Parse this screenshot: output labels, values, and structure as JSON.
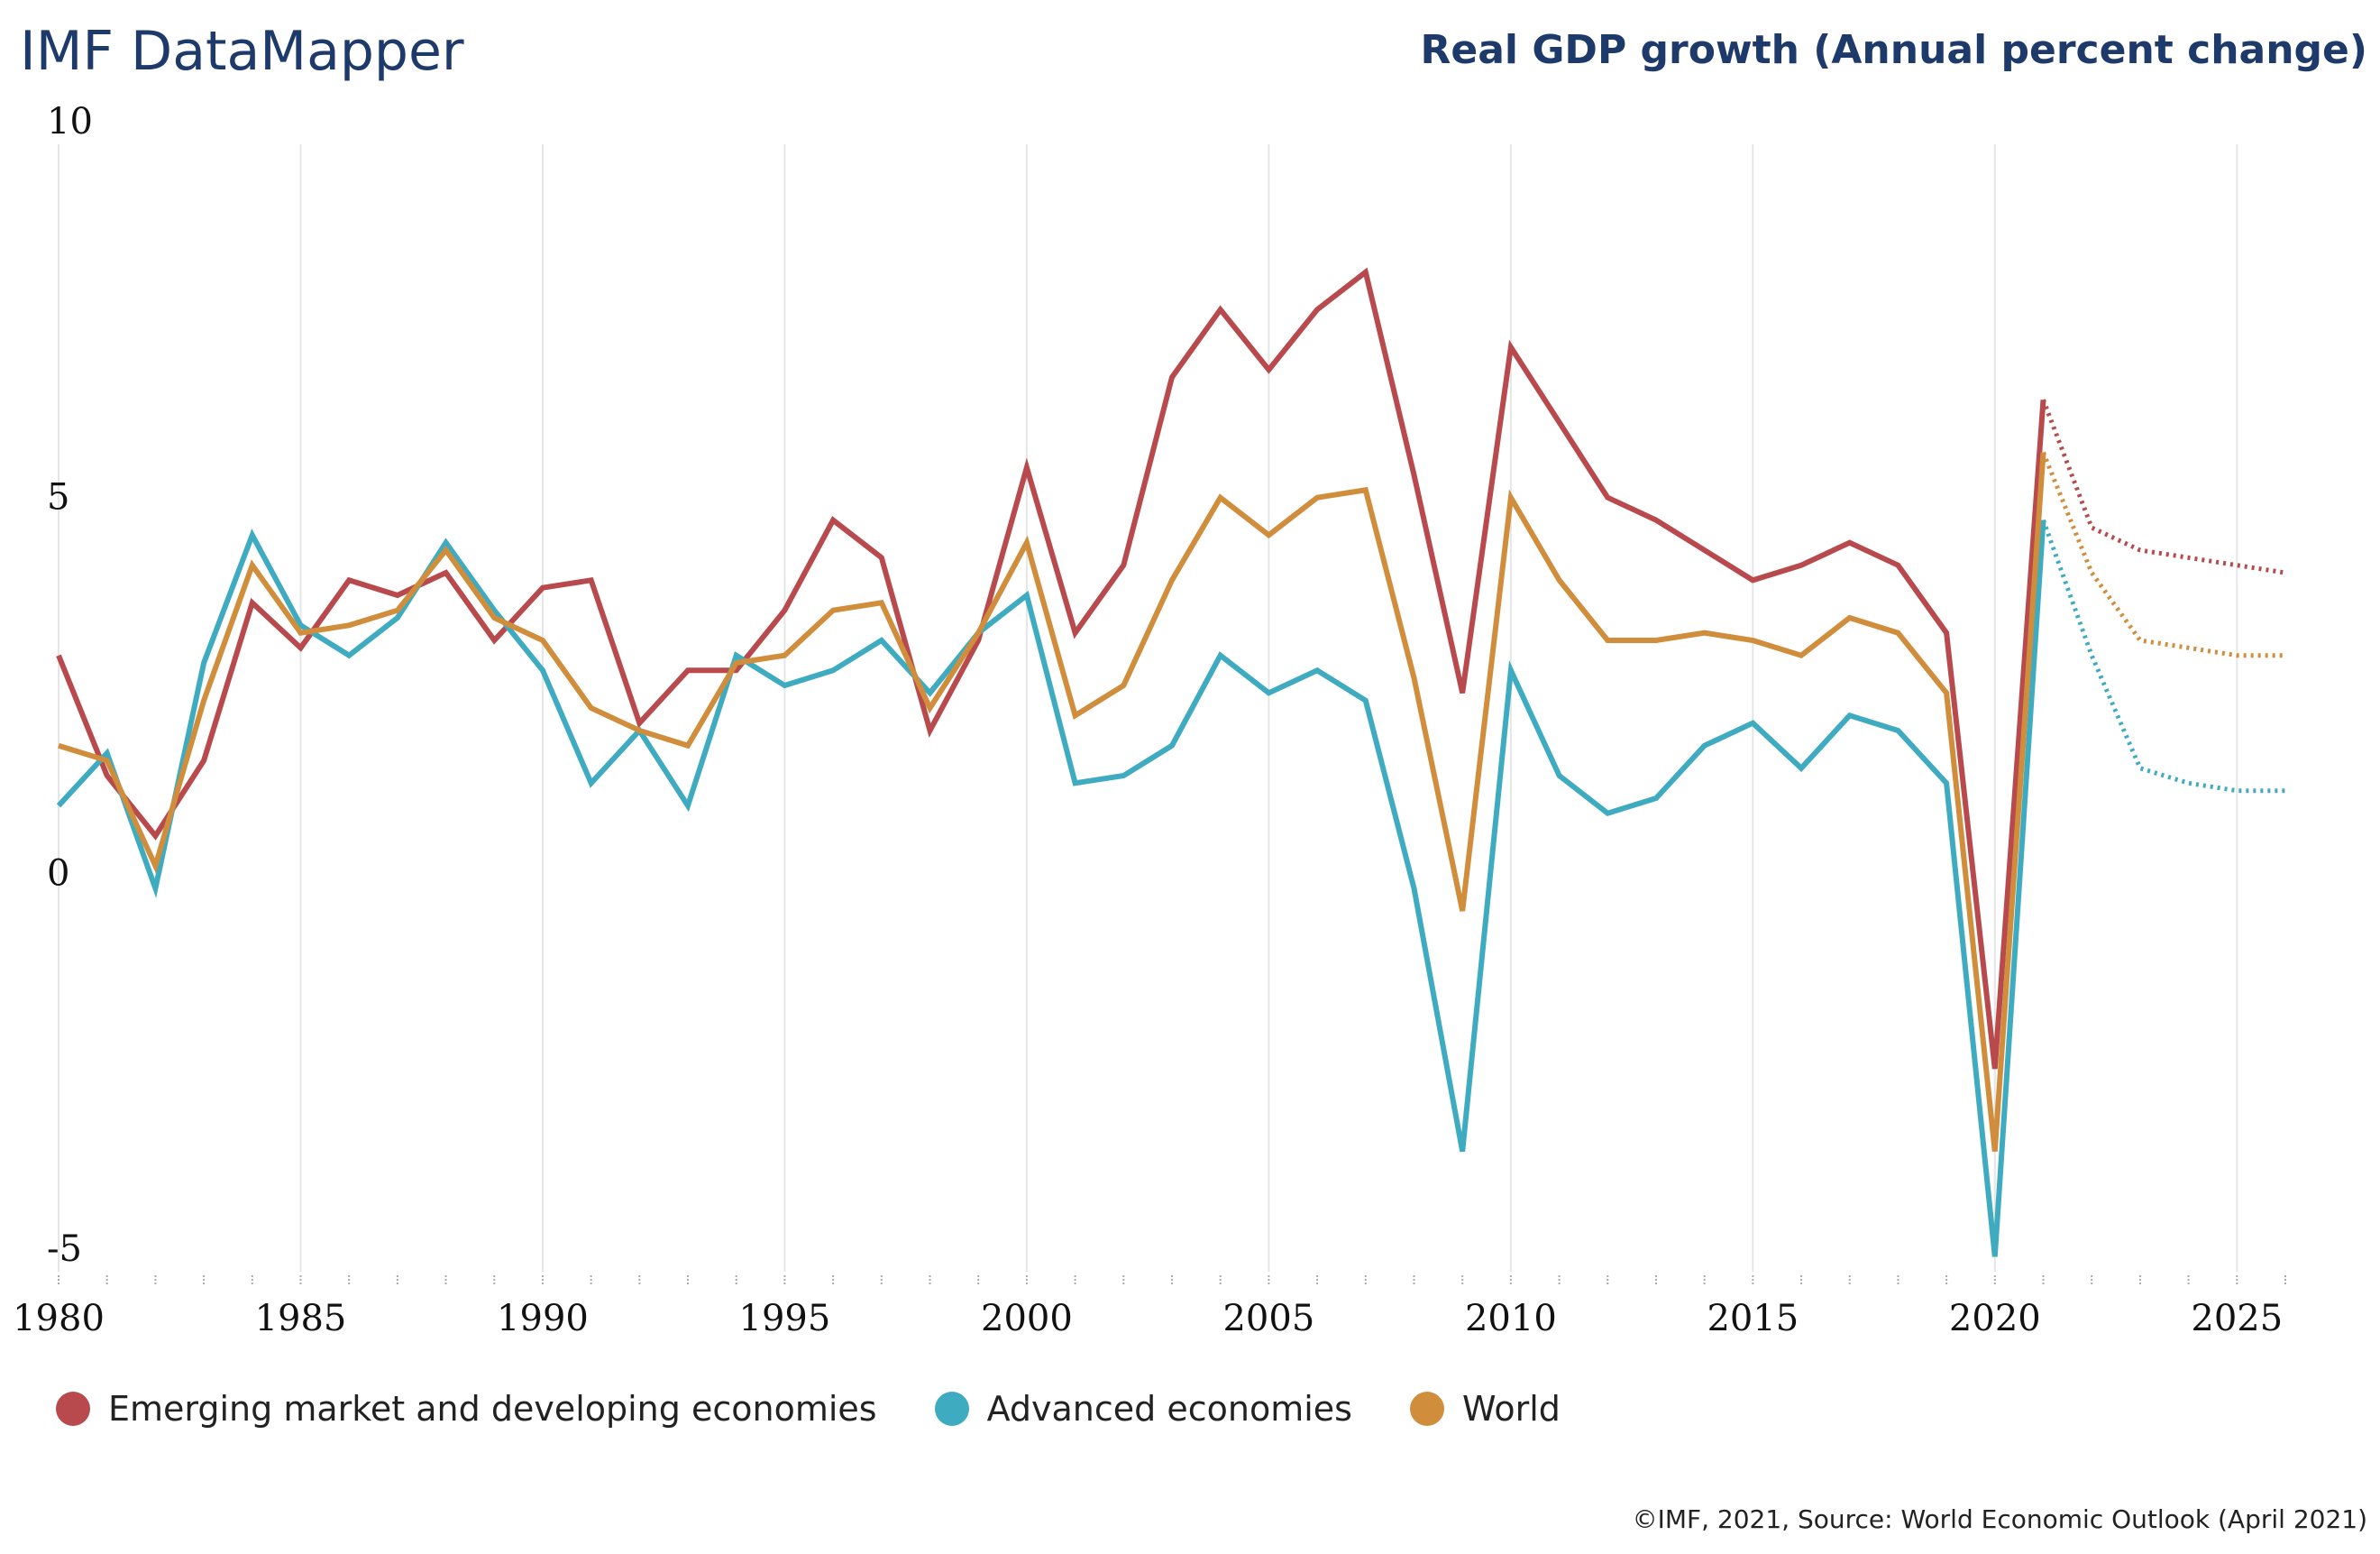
{
  "header": {
    "brand": "IMF DataMapper",
    "subtitle": "Real GDP growth (Annual percent change)"
  },
  "footer": {
    "credit": "©IMF, 2021, Source: World Economic Outlook (April 2021)"
  },
  "colors": {
    "emerging": "#b84a4e",
    "advanced": "#3fabc0",
    "world": "#d08d3c",
    "grid": "#e6e6e6"
  },
  "chart_data": {
    "type": "line",
    "title": "Real GDP growth (Annual percent change)",
    "xlabel": "",
    "ylabel": "",
    "xlim": [
      1980,
      2026
    ],
    "ylim": [
      -5,
      10
    ],
    "x_ticks": [
      "1980",
      "1985",
      "1990",
      "1995",
      "2000",
      "2005",
      "2010",
      "2015",
      "2020",
      "2025"
    ],
    "y_ticks": [
      "10",
      "5",
      "0",
      "-5"
    ],
    "forecast_start": 2021,
    "x": [
      1980,
      1981,
      1982,
      1983,
      1984,
      1985,
      1986,
      1987,
      1988,
      1989,
      1990,
      1991,
      1992,
      1993,
      1994,
      1995,
      1996,
      1997,
      1998,
      1999,
      2000,
      2001,
      2002,
      2003,
      2004,
      2005,
      2006,
      2007,
      2008,
      2009,
      2010,
      2011,
      2012,
      2013,
      2014,
      2015,
      2016,
      2017,
      2018,
      2019,
      2020,
      2021,
      2022,
      2023,
      2024,
      2025,
      2026
    ],
    "series": [
      {
        "name": "Emerging market and developing economies",
        "color_key": "emerging",
        "values": [
          3.2,
          1.6,
          0.8,
          1.8,
          3.9,
          3.3,
          4.2,
          4.0,
          4.3,
          3.4,
          4.1,
          4.2,
          2.3,
          3.0,
          3.0,
          3.8,
          5.0,
          4.5,
          2.2,
          3.4,
          5.7,
          3.5,
          4.4,
          6.9,
          7.8,
          7.0,
          7.8,
          8.3,
          5.6,
          2.7,
          7.3,
          6.3,
          5.3,
          5.0,
          4.6,
          4.2,
          4.4,
          4.7,
          4.4,
          3.5,
          -2.3,
          6.6,
          4.9,
          4.6,
          4.5,
          4.4,
          4.3
        ]
      },
      {
        "name": "Advanced economies",
        "color_key": "advanced",
        "values": [
          1.2,
          1.9,
          0.1,
          3.1,
          4.8,
          3.6,
          3.2,
          3.7,
          4.7,
          3.8,
          3.0,
          1.5,
          2.2,
          1.2,
          3.2,
          2.8,
          3.0,
          3.4,
          2.7,
          3.5,
          4.0,
          1.5,
          1.6,
          2.0,
          3.2,
          2.7,
          3.0,
          2.6,
          0.1,
          -3.4,
          3.0,
          1.6,
          1.1,
          1.3,
          2.0,
          2.3,
          1.7,
          2.4,
          2.2,
          1.5,
          -4.8,
          5.0,
          3.2,
          1.7,
          1.5,
          1.4,
          1.4
        ]
      },
      {
        "name": "World",
        "color_key": "world",
        "values": [
          2.0,
          1.8,
          0.4,
          2.6,
          4.4,
          3.5,
          3.6,
          3.8,
          4.6,
          3.7,
          3.4,
          2.5,
          2.2,
          2.0,
          3.1,
          3.2,
          3.8,
          3.9,
          2.5,
          3.5,
          4.7,
          2.4,
          2.8,
          4.2,
          5.3,
          4.8,
          5.3,
          5.4,
          2.9,
          -0.2,
          5.3,
          4.2,
          3.4,
          3.4,
          3.5,
          3.4,
          3.2,
          3.7,
          3.5,
          2.7,
          -3.4,
          5.9,
          4.3,
          3.4,
          3.3,
          3.2,
          3.2
        ]
      }
    ]
  }
}
